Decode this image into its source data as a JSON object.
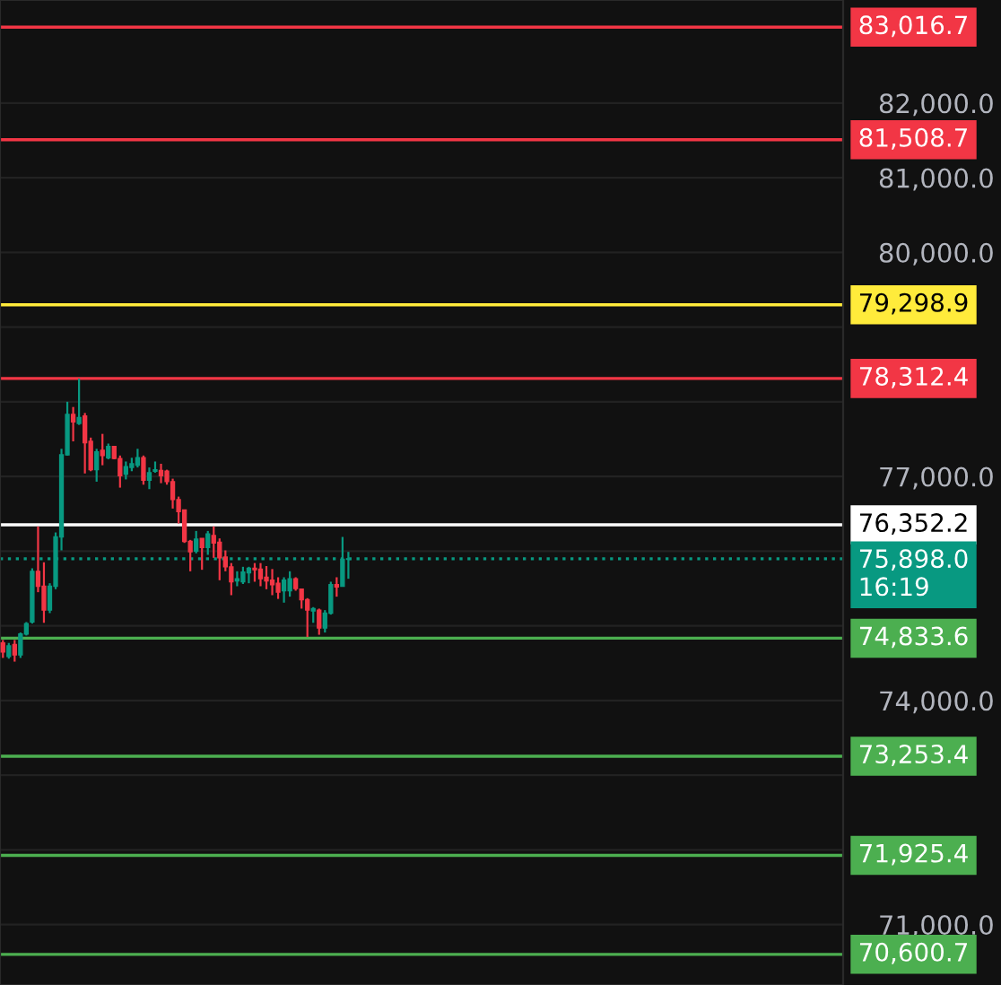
{
  "chart_data": {
    "type": "candlestick",
    "categories": [
      null,
      null,
      null,
      null,
      null,
      null,
      null,
      null,
      null,
      null,
      null,
      null,
      null,
      null,
      null,
      null,
      null,
      null,
      null,
      null,
      null,
      null,
      null,
      null,
      null,
      null,
      null,
      null,
      null,
      null,
      null,
      null,
      null,
      null,
      null,
      null,
      null,
      null,
      null,
      null,
      null,
      null,
      null,
      null,
      null,
      null,
      null,
      null,
      null,
      null,
      null,
      null,
      null,
      null,
      null,
      null,
      null,
      null,
      null,
      null,
      null,
      null,
      null,
      null,
      null,
      null,
      null,
      null,
      null,
      null,
      null,
      null,
      null,
      null,
      null,
      null,
      null,
      null,
      null,
      null,
      null,
      null,
      null,
      null,
      null,
      null,
      null,
      null,
      null,
      null,
      null,
      null,
      null,
      null,
      null,
      null,
      null,
      null,
      null,
      null,
      null,
      null,
      null,
      null,
      null,
      null,
      null,
      null,
      null,
      null,
      null,
      null,
      null,
      null,
      null,
      null,
      null,
      null,
      null,
      null,
      null,
      null,
      null,
      null,
      null,
      null,
      null,
      null,
      null,
      null,
      null,
      null,
      null,
      null,
      null,
      null,
      null,
      null,
      null,
      null,
      null,
      null,
      null,
      null
    ],
    "ohlc": [
      [
        74770,
        74810,
        74570,
        74650
      ],
      [
        74590,
        74770,
        74560,
        74730
      ],
      [
        74750,
        74810,
        74520,
        74610
      ],
      [
        74610,
        74910,
        74570,
        74890
      ],
      [
        74890,
        75050,
        74870,
        75030
      ],
      [
        75050,
        75770,
        75030,
        75730
      ],
      [
        75730,
        76330,
        75450,
        75530
      ],
      [
        75530,
        75850,
        75040,
        75210
      ],
      [
        75210,
        75570,
        75170,
        75530
      ],
      [
        75530,
        76250,
        75490,
        76190
      ],
      [
        76190,
        77370,
        76010,
        77290
      ],
      [
        77290,
        78000,
        77280,
        77830
      ],
      [
        77830,
        77930,
        77470,
        77730
      ],
      [
        77710,
        78310,
        77690,
        77790
      ],
      [
        77810,
        77850,
        77040,
        77450
      ],
      [
        77470,
        77520,
        77070,
        77090
      ],
      [
        77090,
        77370,
        76930,
        77330
      ],
      [
        77350,
        77570,
        77150,
        77280
      ],
      [
        77250,
        77440,
        77230,
        77400
      ],
      [
        77400,
        77410,
        77230,
        77240
      ],
      [
        77240,
        77280,
        76850,
        77010
      ],
      [
        77030,
        77200,
        76960,
        77130
      ],
      [
        77120,
        77250,
        77070,
        77170
      ],
      [
        77150,
        77370,
        77120,
        77250
      ],
      [
        77250,
        77280,
        76890,
        76950
      ],
      [
        76950,
        77120,
        76830,
        77050
      ],
      [
        77070,
        77200,
        77050,
        77090
      ],
      [
        77080,
        77170,
        76910,
        77010
      ],
      [
        77070,
        77090,
        76890,
        76930
      ],
      [
        76930,
        76970,
        76570,
        76690
      ],
      [
        76690,
        76730,
        76370,
        76530
      ],
      [
        76550,
        76550,
        76110,
        76130
      ],
      [
        76130,
        76150,
        75730,
        75990
      ],
      [
        76000,
        76270,
        75970,
        76160
      ],
      [
        76170,
        76170,
        75750,
        76050
      ],
      [
        76050,
        76270,
        75950,
        76230
      ],
      [
        76210,
        76330,
        75910,
        76110
      ],
      [
        76120,
        76170,
        75610,
        75910
      ],
      [
        75920,
        76010,
        75730,
        75790
      ],
      [
        75790,
        75840,
        75410,
        75590
      ],
      [
        75600,
        75730,
        75530,
        75630
      ],
      [
        75590,
        75790,
        75560,
        75720
      ],
      [
        75710,
        75790,
        75570,
        75770
      ],
      [
        75770,
        75840,
        75590,
        75750
      ],
      [
        75760,
        75840,
        75530,
        75630
      ],
      [
        75650,
        75800,
        75490,
        75600
      ],
      [
        75610,
        75760,
        75410,
        75550
      ],
      [
        75570,
        75650,
        75360,
        75450
      ],
      [
        75470,
        75650,
        75310,
        75610
      ],
      [
        75470,
        75730,
        75390,
        75630
      ],
      [
        75630,
        75650,
        75470,
        75500
      ],
      [
        75490,
        75500,
        75230,
        75350
      ],
      [
        75350,
        75370,
        74850,
        75210
      ],
      [
        75200,
        75250,
        75040,
        75230
      ],
      [
        75210,
        75230,
        74880,
        74970
      ],
      [
        74970,
        75210,
        74910,
        75170
      ],
      [
        75170,
        75590,
        75150,
        75550
      ],
      [
        75550,
        75650,
        75390,
        75520
      ],
      [
        75530,
        76190,
        75530,
        75890
      ],
      [
        75890,
        75990,
        75630,
        75898
      ],
      null,
      null,
      null,
      null,
      null,
      null,
      null,
      null,
      null,
      null,
      null,
      null,
      null,
      null,
      null,
      null,
      null,
      null,
      null,
      null,
      null,
      null,
      null,
      null,
      null,
      null,
      null,
      null,
      null,
      null,
      null,
      null,
      null,
      null,
      null,
      null,
      null,
      null,
      null,
      null,
      null,
      null,
      null,
      null,
      null,
      null,
      null,
      null,
      null,
      null,
      null,
      null,
      null,
      null,
      null,
      null,
      null,
      null,
      null,
      null,
      null,
      null,
      null,
      null,
      null,
      null,
      null,
      null,
      null,
      null,
      null,
      null,
      null,
      null,
      null,
      null,
      null,
      null,
      null,
      null,
      null,
      null,
      null,
      null
    ],
    "ylim": [
      70190,
      83380
    ],
    "yticks": [
      {
        "value": 71000,
        "label": "71,000.0"
      },
      {
        "value": 72000,
        "label": null
      },
      {
        "value": 73000,
        "label": null
      },
      {
        "value": 74000,
        "label": "74,000.0"
      },
      {
        "value": 75000,
        "label": null
      },
      {
        "value": 76000,
        "label": null
      },
      {
        "value": 77000,
        "label": "77,000.0"
      },
      {
        "value": 78000,
        "label": null
      },
      {
        "value": 79000,
        "label": null
      },
      {
        "value": 80000,
        "label": "80,000.0"
      },
      {
        "value": 81000,
        "label": "81,000.0"
      },
      {
        "value": 82000,
        "label": "82,000.0"
      }
    ],
    "tick_labels": "y",
    "grid": "y",
    "ref_lines": [
      {
        "axis": "y",
        "value": 83016.7,
        "label": "83,016.7",
        "color": "#f23645",
        "line_style": "solid"
      },
      {
        "axis": "y",
        "value": 81508.7,
        "label": "81,508.7",
        "color": "#f23645",
        "line_style": "solid"
      },
      {
        "axis": "y",
        "value": 79298.9,
        "label": "79,298.9",
        "color": "#ffeb3b",
        "line_style": "solid"
      },
      {
        "axis": "y",
        "value": 78312.4,
        "label": "78,312.4",
        "color": "#f23645",
        "line_style": "solid"
      },
      {
        "axis": "y",
        "value": 76352.2,
        "label": "76,352.2",
        "color": "#ffffff",
        "line_style": "solid"
      },
      {
        "axis": "y",
        "value": 75898.0,
        "label": "75,898.0\n16:19",
        "color": "#089981",
        "line_style": "dotted"
      },
      {
        "axis": "y",
        "value": 74833.6,
        "label": "74,833.6",
        "color": "#4caf50",
        "line_style": "solid"
      },
      {
        "axis": "y",
        "value": 73253.4,
        "label": "73,253.4",
        "color": "#4caf50",
        "line_style": "solid"
      },
      {
        "axis": "y",
        "value": 71925.4,
        "label": "71,925.4",
        "color": "#4caf50",
        "line_style": "solid"
      },
      {
        "axis": "y",
        "value": 70600.7,
        "label": "70,600.7",
        "color": "#4caf50",
        "line_style": "solid"
      }
    ]
  }
}
